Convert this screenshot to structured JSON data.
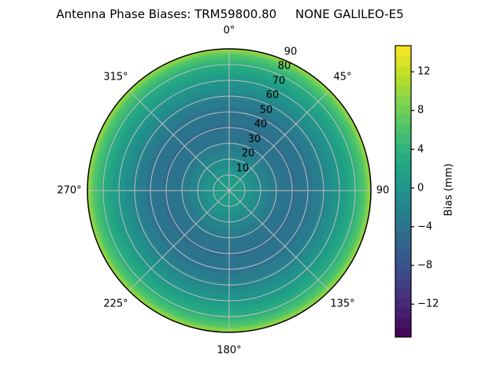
{
  "window": {
    "background": "#ffffff"
  },
  "chart_data": {
    "type": "heatmap",
    "projection": "polar",
    "title": "Antenna Phase Biases: TRM59800.80     NONE GALILEO-E5",
    "antenna": "TRM59800.80",
    "dome": "NONE",
    "signal": "GALILEO-E5",
    "grid": true,
    "r_max": 90,
    "theta_ticks": [
      {
        "deg": 0,
        "label": "0°"
      },
      {
        "deg": 45,
        "label": "45°"
      },
      {
        "deg": 90,
        "label": "90"
      },
      {
        "deg": 135,
        "label": "135°"
      },
      {
        "deg": 180,
        "label": "180°"
      },
      {
        "deg": 225,
        "label": "225°"
      },
      {
        "deg": 270,
        "label": "270°"
      },
      {
        "deg": 315,
        "label": "315°"
      }
    ],
    "r_ticks": [
      {
        "r": 10,
        "label": "10"
      },
      {
        "r": 20,
        "label": "20"
      },
      {
        "r": 30,
        "label": "30"
      },
      {
        "r": 40,
        "label": "40"
      },
      {
        "r": 50,
        "label": "50"
      },
      {
        "r": 60,
        "label": "60"
      },
      {
        "r": 70,
        "label": "70"
      },
      {
        "r": 80,
        "label": "80"
      },
      {
        "r": 90,
        "label": "90"
      }
    ],
    "r_label_angle_deg": 22.5,
    "colorbar": {
      "label": "Bias (mm)",
      "colormap": "viridis",
      "vmin": -15.4,
      "vmax": 14.7,
      "band_step": 1,
      "ticks": [
        {
          "value": 12,
          "label": "12"
        },
        {
          "value": 8,
          "label": "8"
        },
        {
          "value": 4,
          "label": "4"
        },
        {
          "value": 0,
          "label": "0"
        },
        {
          "value": -4,
          "label": "−4"
        },
        {
          "value": -8,
          "label": "−8"
        },
        {
          "value": -12,
          "label": "−12"
        }
      ]
    },
    "radial_profile": {
      "azimuth_dependence": "none",
      "zenith_deg": [
        0,
        10,
        20,
        30,
        40,
        50,
        60,
        70,
        75,
        80,
        85,
        88,
        90
      ],
      "bias_mm": [
        1.5,
        0.5,
        -1.5,
        -3.5,
        -4.5,
        -4.0,
        -2.0,
        0.5,
        1.8,
        3.5,
        6.0,
        8.5,
        11.0
      ]
    }
  },
  "style": {
    "grid_color": "#bdbdbd",
    "spine_color": "#000000",
    "text_color": "#000000",
    "viridis_stops": [
      [
        0.0,
        "#440154"
      ],
      [
        0.1,
        "#482475"
      ],
      [
        0.2,
        "#414487"
      ],
      [
        0.3,
        "#355f8d"
      ],
      [
        0.4,
        "#2a788e"
      ],
      [
        0.5,
        "#21918c"
      ],
      [
        0.6,
        "#22a884"
      ],
      [
        0.7,
        "#44bf70"
      ],
      [
        0.8,
        "#7ad151"
      ],
      [
        0.9,
        "#bddf26"
      ],
      [
        1.0,
        "#fde725"
      ]
    ]
  }
}
